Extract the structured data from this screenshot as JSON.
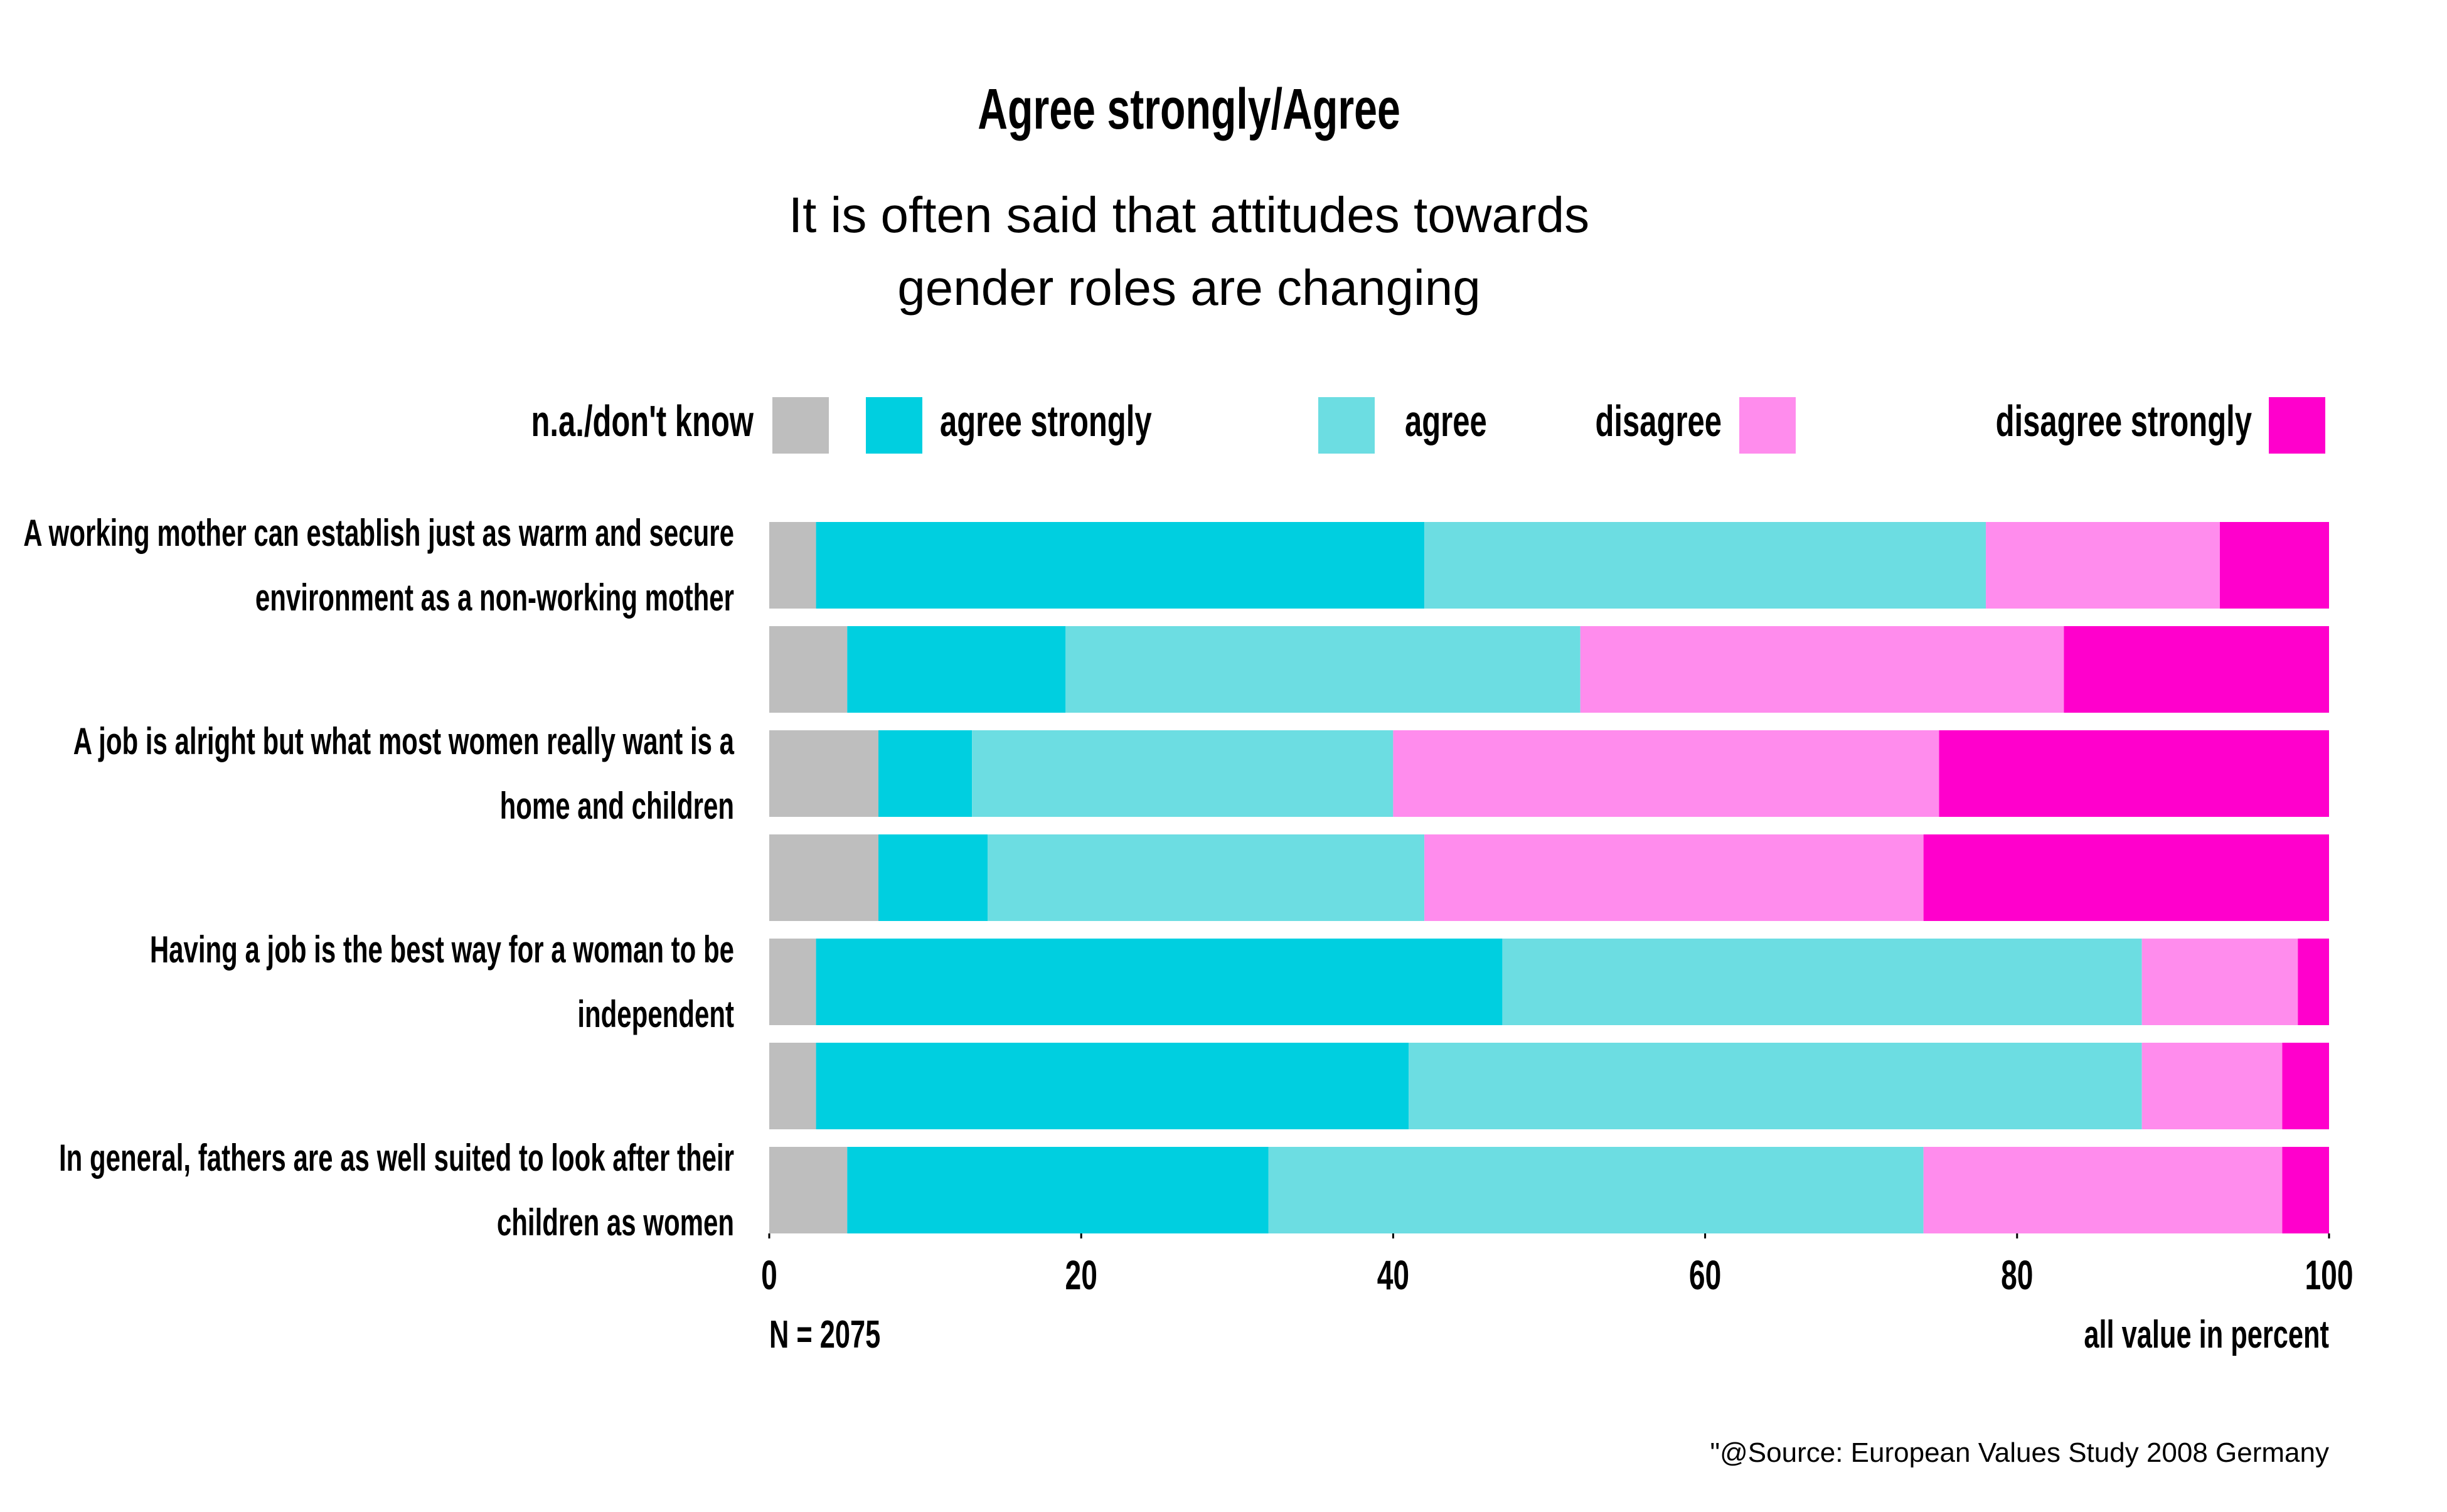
{
  "chart_data": {
    "type": "bar",
    "orientation": "horizontal",
    "stacked": true,
    "title": "Agree strongly/Agree",
    "subtitle": "It is often said that attitudes towards gender roles are changing",
    "categories": [
      "A working mother can establish just as warm and secure environment as a non-working mother",
      null,
      "A job is alright but what most women really want is a home and children",
      null,
      "Having a job is the best way for a woman to be independent",
      null,
      "In general, fathers are as well suited to look after their children as women"
    ],
    "series": [
      {
        "name": "n.a./don't know",
        "color": "#bebebe",
        "values": [
          3,
          5,
          7,
          7,
          3,
          3,
          5
        ]
      },
      {
        "name": "agree strongly",
        "color": "#00cfe0",
        "values": [
          39,
          14,
          6,
          7,
          44,
          38,
          27
        ]
      },
      {
        "name": "agree",
        "color": "#6cdde2",
        "values": [
          36,
          33,
          27,
          28,
          41,
          47,
          42
        ]
      },
      {
        "name": "disagree",
        "color": "#ff8ced",
        "values": [
          15,
          31,
          35,
          32,
          10,
          9,
          23
        ]
      },
      {
        "name": "disagree strongly",
        "color": "#ff00cc",
        "values": [
          7,
          17,
          25,
          26,
          2,
          3,
          3
        ]
      }
    ],
    "xlim": [
      0,
      100
    ],
    "xticks": [
      0,
      20,
      40,
      60,
      80,
      100
    ],
    "sample_note": "N = 2075",
    "unit_note": "all value in percent",
    "source": "\"@Source: European Values Study 2008 Germany"
  }
}
